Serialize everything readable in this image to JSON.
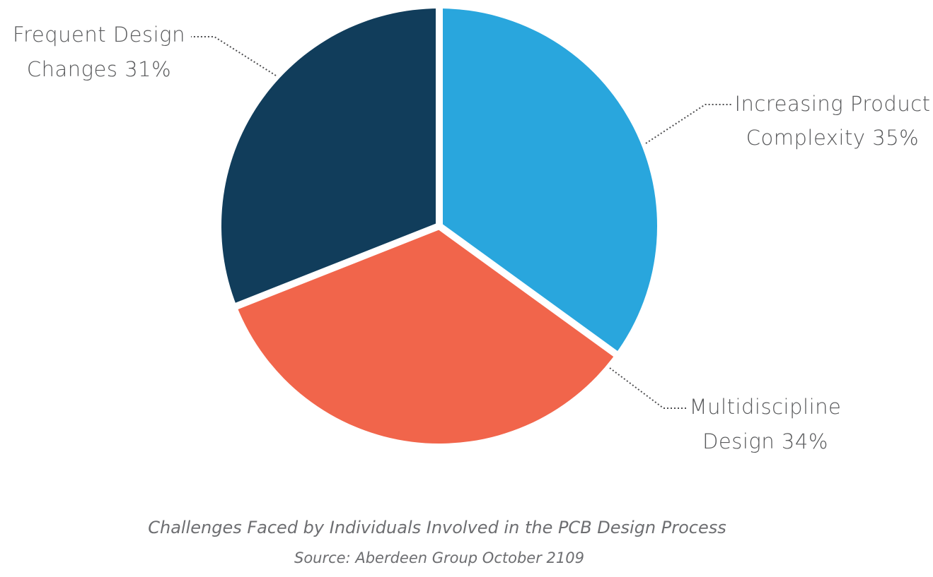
{
  "chart_data": {
    "type": "pie",
    "title": "",
    "slices": [
      {
        "label_line1": "Increasing Product",
        "label_line2": "Complexity 35%",
        "value": 35,
        "color": "#29a6dd"
      },
      {
        "label_line1": "Multidiscipline",
        "label_line2": "Design 34%",
        "value": 34,
        "color": "#f1654b"
      },
      {
        "label_line1": "Frequent Design",
        "label_line2": "Changes 31%",
        "value": 31,
        "color": "#113d5b"
      }
    ],
    "legend": "none (leader-line labels)"
  },
  "caption": "Challenges Faced by Individuals Involved in the PCB Design Process",
  "source": "Source: Aberdeen Group October 2109"
}
